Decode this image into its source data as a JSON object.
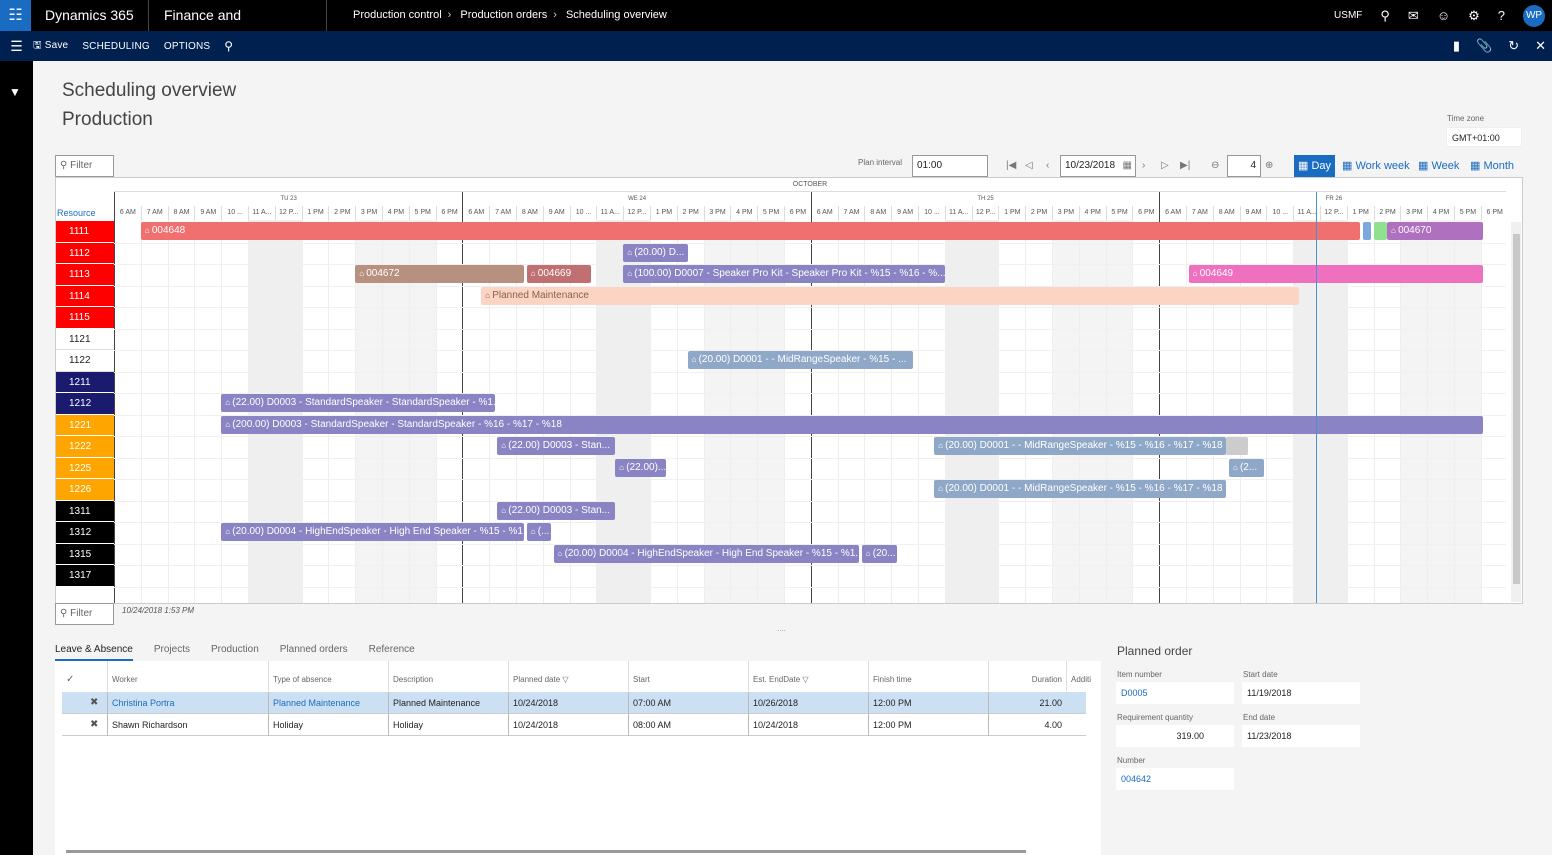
{
  "top": {
    "app": "Dynamics 365",
    "module": "Finance and Operations",
    "crumbs": [
      "Production control",
      "Production orders",
      "Scheduling overview"
    ],
    "company": "USMF",
    "avatar": "WP"
  },
  "action": {
    "save": "Save",
    "scheduling": "SCHEDULING",
    "options": "OPTIONS"
  },
  "page": {
    "title": "Scheduling overview",
    "subtitle": "Production",
    "tz_label": "Time zone",
    "tz_value": "GMT+01:00"
  },
  "toolbar": {
    "filter_placeholder": "Filter",
    "plan_interval_label": "Plan interval",
    "plan_interval": "01:00",
    "date": "10/23/2018",
    "zoom": "4",
    "views": [
      "Day",
      "Work week",
      "Week",
      "Month"
    ],
    "active_view": "Day"
  },
  "gantt": {
    "month": "OCTOBER",
    "days": [
      "TU 23",
      "WE 24",
      "TH 25",
      "FR 26"
    ],
    "hours": [
      "6 AM",
      "7 AM",
      "8 AM",
      "9 AM",
      "10 ...",
      "11 A...",
      "12 P...",
      "1 PM",
      "2 PM",
      "3 PM",
      "4 PM",
      "5 PM",
      "6 PM"
    ],
    "resource_header": "Resource",
    "resources": [
      {
        "id": "1111",
        "color": "#ff0000",
        "text": "#fff"
      },
      {
        "id": "1112",
        "color": "#ff0000",
        "text": "#fff"
      },
      {
        "id": "1113",
        "color": "#ff0000",
        "text": "#fff"
      },
      {
        "id": "1114",
        "color": "#ff0000",
        "text": "#fff"
      },
      {
        "id": "1115",
        "color": "#ff0000",
        "text": "#fff"
      },
      {
        "id": "1121",
        "color": "#ffffff",
        "text": "#222"
      },
      {
        "id": "1122",
        "color": "#ffffff",
        "text": "#222"
      },
      {
        "id": "1211",
        "color": "#1a1a6e",
        "text": "#fff"
      },
      {
        "id": "1212",
        "color": "#1a1a6e",
        "text": "#fff"
      },
      {
        "id": "1221",
        "color": "#ffa500",
        "text": "#fff"
      },
      {
        "id": "1222",
        "color": "#ffa500",
        "text": "#fff"
      },
      {
        "id": "1225",
        "color": "#ffa500",
        "text": "#fff"
      },
      {
        "id": "1226",
        "color": "#ffa500",
        "text": "#fff"
      },
      {
        "id": "1311",
        "color": "#000000",
        "text": "#fff"
      },
      {
        "id": "1312",
        "color": "#000000",
        "text": "#fff"
      },
      {
        "id": "1315",
        "color": "#000000",
        "text": "#fff"
      },
      {
        "id": "1317",
        "color": "#000000",
        "text": "#fff"
      }
    ],
    "bars": [
      {
        "row": 0,
        "start": 1.0,
        "end": 46.5,
        "color": "#f07070",
        "label": "004648"
      },
      {
        "row": 0,
        "start": 46.6,
        "end": 46.9,
        "color": "#7da7e0",
        "label": ""
      },
      {
        "row": 0,
        "start": 47.0,
        "end": 47.5,
        "color": "#90e090",
        "label": ""
      },
      {
        "row": 0,
        "start": 47.5,
        "end": 51.1,
        "color": "#b070c0",
        "label": "004670"
      },
      {
        "row": 1,
        "start": 19.0,
        "end": 21.4,
        "color": "#8a84c4",
        "label": "(20.00) D..."
      },
      {
        "row": 2,
        "start": 9.0,
        "end": 15.3,
        "color": "#b89080",
        "label": "004672"
      },
      {
        "row": 2,
        "start": 15.4,
        "end": 17.8,
        "color": "#c07070",
        "label": "004669"
      },
      {
        "row": 2,
        "start": 19.0,
        "end": 31.0,
        "color": "#8a84c4",
        "label": "(100.00) D0007 - Speaker Pro Kit - Speaker Pro Kit - %15 - %16 - %..."
      },
      {
        "row": 2,
        "start": 40.1,
        "end": 51.1,
        "color": "#f070c0",
        "label": "004649"
      },
      {
        "row": 3,
        "start": 13.7,
        "end": 44.2,
        "color": "#fbd4c4",
        "label": "Planned Maintenance",
        "textcolor": "#8a6050"
      },
      {
        "row": 6,
        "start": 21.4,
        "end": 29.8,
        "color": "#8fa8c8",
        "label": "(20.00) D0001 - - MidRangeSpeaker - %15 - ..."
      },
      {
        "row": 8,
        "start": 4.0,
        "end": 14.2,
        "color": "#8a84c4",
        "label": "(22.00) D0003 - StandardSpeaker - StandardSpeaker - %1..."
      },
      {
        "row": 9,
        "start": 4.0,
        "end": 51.1,
        "color": "#8a84c4",
        "label": "(200.00) D0003 - StandardSpeaker - StandardSpeaker - %16 - %17 - %18"
      },
      {
        "row": 10,
        "start": 14.3,
        "end": 18.7,
        "color": "#8a84c4",
        "label": "(22.00) D0003 - Stan..."
      },
      {
        "row": 10,
        "start": 30.6,
        "end": 41.5,
        "color": "#8fa8c8",
        "label": "(20.00) D0001 - - MidRangeSpeaker - %15 - %16 - %17 - %18"
      },
      {
        "row": 10,
        "start": 41.5,
        "end": 42.3,
        "color": "#cccccc",
        "label": ""
      },
      {
        "row": 11,
        "start": 18.7,
        "end": 20.6,
        "color": "#8a84c4",
        "label": "(22.00)..."
      },
      {
        "row": 11,
        "start": 41.6,
        "end": 42.9,
        "color": "#8fa8c8",
        "label": "(2..."
      },
      {
        "row": 12,
        "start": 30.6,
        "end": 41.5,
        "color": "#8fa8c8",
        "label": "(20.00) D0001 - - MidRangeSpeaker - %15 - %16 - %17 - %18"
      },
      {
        "row": 13,
        "start": 14.3,
        "end": 18.7,
        "color": "#8a84c4",
        "label": "(22.00) D0003 - Stan..."
      },
      {
        "row": 14,
        "start": 4.0,
        "end": 15.3,
        "color": "#8a84c4",
        "label": "(20.00) D0004 - HighEndSpeaker - High End Speaker - %15 - %1..."
      },
      {
        "row": 14,
        "start": 15.4,
        "end": 16.3,
        "color": "#8a84c4",
        "label": "(..."
      },
      {
        "row": 15,
        "start": 16.4,
        "end": 27.8,
        "color": "#8a84c4",
        "label": "(20.00) D0004 - HighEndSpeaker - High End Speaker - %15 - %1..."
      },
      {
        "row": 15,
        "start": 27.9,
        "end": 29.2,
        "color": "#8a84c4",
        "label": "(20..."
      }
    ],
    "timestamp": "10/24/2018 1:53 PM"
  },
  "tabs": [
    "Leave & Absence",
    "Projects",
    "Production",
    "Planned orders",
    "Reference"
  ],
  "grid": {
    "headers": [
      "Worker",
      "Type of absence",
      "Description",
      "Planned date",
      "Start",
      "Est. EndDate",
      "Finish time",
      "Duration",
      "Additi"
    ],
    "rows": [
      {
        "worker": "Christina Portra",
        "type": "Planned Maintenance",
        "desc": "Planned Maintenance",
        "date": "10/24/2018",
        "start": "07:00 AM",
        "end": "10/26/2018",
        "finish": "12:00 PM",
        "duration": "21.00"
      },
      {
        "worker": "Shawn Richardson",
        "type": "Holiday",
        "desc": "Holiday",
        "date": "10/24/2018",
        "start": "08:00 AM",
        "end": "10/24/2018",
        "finish": "12:00 PM",
        "duration": "4.00"
      }
    ]
  },
  "side": {
    "title": "Planned order",
    "item_label": "Item number",
    "item": "D0005",
    "start_label": "Start date",
    "start": "11/19/2018",
    "req_label": "Requirement quantity",
    "req": "319.00",
    "end_label": "End date",
    "end": "11/23/2018",
    "num_label": "Number",
    "num": "004642"
  }
}
